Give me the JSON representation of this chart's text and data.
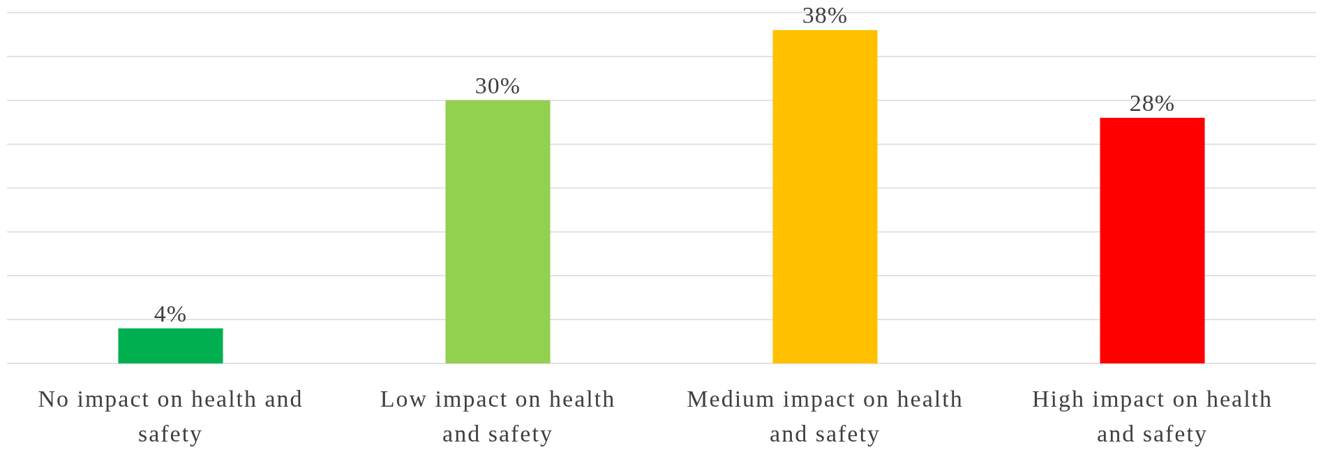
{
  "chart_data": {
    "type": "bar",
    "categories": [
      "No impact on health and safety",
      "Low impact on health and safety",
      "Medium impact on health and safety",
      "High impact on health and safety"
    ],
    "values": [
      4,
      30,
      38,
      28
    ],
    "colors": [
      "#00b050",
      "#92d050",
      "#ffc000",
      "#ff0000"
    ],
    "value_labels": [
      "4%",
      "30%",
      "38%",
      "28%"
    ],
    "ylim": [
      0,
      40
    ],
    "yticks": [
      {
        "value": 0,
        "label": null
      },
      {
        "value": 5,
        "label": null
      },
      {
        "value": 10,
        "label": null
      },
      {
        "value": 15,
        "label": null
      },
      {
        "value": 20,
        "label": null
      },
      {
        "value": 25,
        "label": null
      },
      {
        "value": 30,
        "label": null
      },
      {
        "value": 35,
        "label": null
      },
      {
        "value": 40,
        "label": null
      }
    ],
    "grid": "y",
    "tick_labels": "x"
  }
}
